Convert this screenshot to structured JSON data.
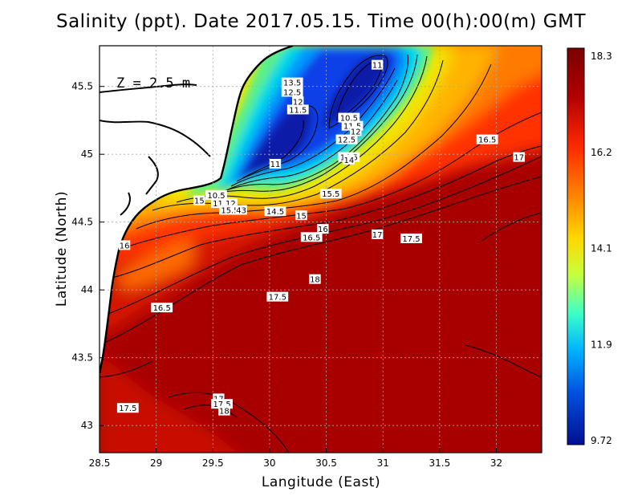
{
  "title": "Salinity (ppt). Date 2017.05.15. Time 00(h):00(m) GMT",
  "depth_label": "Z = 2.5 m",
  "axes": {
    "xlabel": "Langitude (East)",
    "ylabel": "Latitude (North)",
    "xlim": [
      28.5,
      32.4
    ],
    "ylim": [
      42.8,
      45.8
    ],
    "xticks": [
      "28.5",
      "29",
      "29.5",
      "30",
      "30.5",
      "31",
      "31.5",
      "32"
    ],
    "yticks": [
      "43",
      "43.5",
      "44",
      "44.5",
      "45",
      "45.5"
    ],
    "grid": true
  },
  "colorbar": {
    "min": 9.72,
    "max": 18.3,
    "labels": [
      "18.3",
      "16.2",
      "14.1",
      "11.9",
      "9.72"
    ],
    "colors": [
      "#7a0000",
      "#c00000",
      "#ff2a00",
      "#ff8a00",
      "#ffd200",
      "#c8ff3c",
      "#3cffc8",
      "#00b4ff",
      "#0050e0",
      "#001090"
    ]
  },
  "contour_labels": [
    {
      "text": "11",
      "lon": 30.95,
      "lat": 45.66
    },
    {
      "text": "13.5",
      "lon": 30.2,
      "lat": 45.53
    },
    {
      "text": "12.5",
      "lon": 30.2,
      "lat": 45.46
    },
    {
      "text": "12",
      "lon": 30.25,
      "lat": 45.39
    },
    {
      "text": "11.5",
      "lon": 30.25,
      "lat": 45.33
    },
    {
      "text": "10.5",
      "lon": 30.7,
      "lat": 45.27
    },
    {
      "text": "11.5",
      "lon": 30.73,
      "lat": 45.21
    },
    {
      "text": "12",
      "lon": 30.76,
      "lat": 45.17
    },
    {
      "text": "12.5",
      "lon": 30.68,
      "lat": 45.11
    },
    {
      "text": "14.5",
      "lon": 30.7,
      "lat": 44.98
    },
    {
      "text": "14",
      "lon": 30.7,
      "lat": 44.96
    },
    {
      "text": "11",
      "lon": 30.05,
      "lat": 44.93
    },
    {
      "text": "16.5",
      "lon": 31.92,
      "lat": 45.11
    },
    {
      "text": "17",
      "lon": 32.2,
      "lat": 44.98
    },
    {
      "text": "15.5",
      "lon": 30.54,
      "lat": 44.71
    },
    {
      "text": "10.5",
      "lon": 29.53,
      "lat": 44.7
    },
    {
      "text": "11.12",
      "lon": 29.6,
      "lat": 44.64
    },
    {
      "text": "15.5",
      "lon": 29.65,
      "lat": 44.59
    },
    {
      "text": "43",
      "lon": 29.75,
      "lat": 44.59
    },
    {
      "text": "14.5",
      "lon": 30.05,
      "lat": 44.58
    },
    {
      "text": "15",
      "lon": 29.38,
      "lat": 44.66
    },
    {
      "text": "15",
      "lon": 30.28,
      "lat": 44.55
    },
    {
      "text": "16",
      "lon": 30.47,
      "lat": 44.45
    },
    {
      "text": "16.5",
      "lon": 30.37,
      "lat": 44.39
    },
    {
      "text": "17",
      "lon": 30.95,
      "lat": 44.41
    },
    {
      "text": "17.5",
      "lon": 31.25,
      "lat": 44.38
    },
    {
      "text": "16",
      "lon": 28.72,
      "lat": 44.33
    },
    {
      "text": "18",
      "lon": 30.4,
      "lat": 44.08
    },
    {
      "text": "17.5",
      "lon": 30.07,
      "lat": 43.95
    },
    {
      "text": "16.5",
      "lon": 29.05,
      "lat": 43.87
    },
    {
      "text": "17",
      "lon": 29.55,
      "lat": 43.2
    },
    {
      "text": "17.5",
      "lon": 29.58,
      "lat": 43.16
    },
    {
      "text": "18",
      "lon": 29.6,
      "lat": 43.11
    },
    {
      "text": "17.5",
      "lon": 28.75,
      "lat": 43.13
    }
  ]
}
